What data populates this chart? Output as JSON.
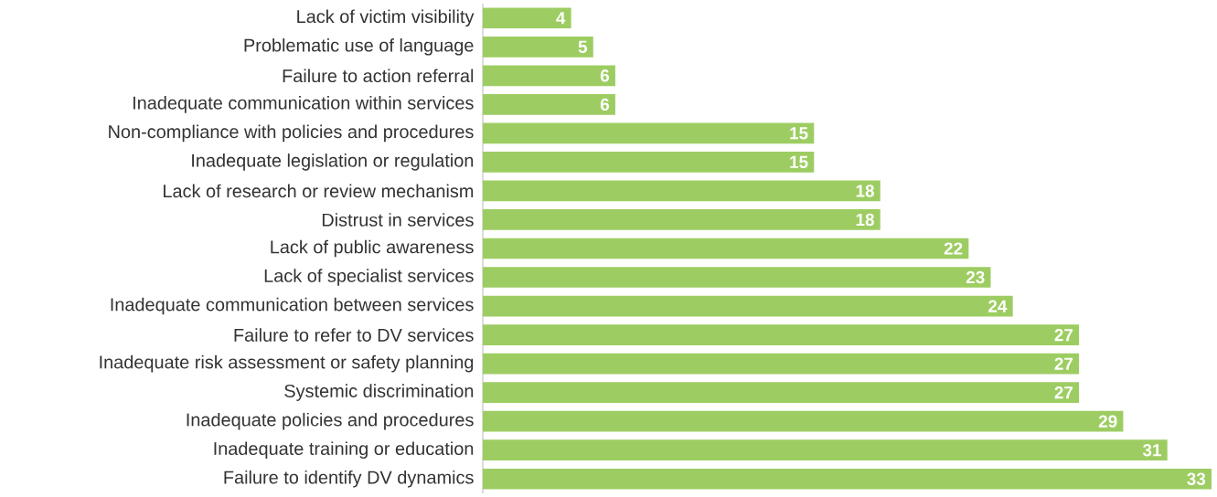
{
  "chart_data": {
    "type": "bar",
    "orientation": "horizontal",
    "data_labels": true,
    "color": "#9dcd62",
    "categories": [
      "Lack of victim visibility",
      "Problematic use of language",
      "Failure to action referral",
      "Inadequate communication within services",
      "Non-compliance with policies and procedures",
      "Inadequate legislation or regulation",
      "Lack of research or review mechanism",
      "Distrust in services",
      "Lack of public awareness",
      "Lack of specialist services",
      "Inadequate communication between services",
      "Failure to refer to DV services",
      "Inadequate risk assessment or safety planning",
      "Systemic discrimination",
      "Inadequate policies and procedures",
      "Inadequate training or education",
      "Failure to identify DV dynamics"
    ],
    "values": [
      4,
      5,
      6,
      6,
      15,
      15,
      18,
      18,
      22,
      23,
      24,
      27,
      27,
      27,
      29,
      31,
      33
    ]
  }
}
